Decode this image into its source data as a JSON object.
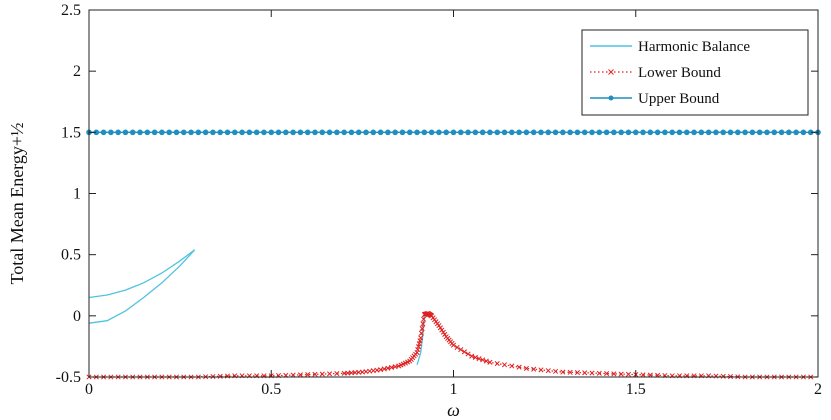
{
  "chart_data": {
    "type": "line",
    "title": "",
    "xlabel": "ω",
    "ylabel": "Total Mean Energy+½",
    "xlim": [
      0,
      2
    ],
    "ylim": [
      -0.5,
      2.5
    ],
    "xticks": [
      0,
      0.5,
      1,
      1.5,
      2
    ],
    "xtick_labels": [
      "0",
      "0.5",
      "1",
      "1.5",
      "2"
    ],
    "yticks": [
      -0.5,
      0,
      0.5,
      1,
      1.5,
      2,
      2.5
    ],
    "ytick_labels": [
      "-0.5",
      "0",
      "0.5",
      "1",
      "1.5",
      "2",
      "2.5"
    ],
    "grid": false,
    "legend_position": "top-right",
    "series": [
      {
        "name": "Harmonic Balance",
        "color": "#4fc3e0",
        "style": "solid",
        "segments": [
          {
            "x": [
              0,
              0.05,
              0.1,
              0.15,
              0.2,
              0.25,
              0.29
            ],
            "y": [
              0.15,
              0.17,
              0.21,
              0.27,
              0.35,
              0.45,
              0.54
            ]
          },
          {
            "x": [
              0,
              0.05,
              0.1,
              0.15,
              0.2,
              0.25,
              0.29
            ],
            "y": [
              -0.06,
              -0.04,
              0.04,
              0.15,
              0.27,
              0.41,
              0.54
            ]
          },
          {
            "x": [
              0.9,
              0.91,
              0.915,
              0.92,
              0.925
            ],
            "y": [
              -0.4,
              -0.3,
              -0.18,
              -0.02,
              0.02
            ]
          }
        ]
      },
      {
        "name": "Lower Bound",
        "color": "#e02020",
        "style": "dotted-x",
        "x": [
          0,
          0.1,
          0.2,
          0.3,
          0.4,
          0.5,
          0.6,
          0.7,
          0.75,
          0.8,
          0.85,
          0.88,
          0.9,
          0.91,
          0.92,
          0.93,
          0.94,
          0.96,
          0.98,
          1.0,
          1.05,
          1.1,
          1.2,
          1.3,
          1.4,
          1.5,
          1.6,
          1.7,
          1.8,
          1.9,
          2.0
        ],
        "y": [
          -0.5,
          -0.5,
          -0.5,
          -0.5,
          -0.49,
          -0.49,
          -0.48,
          -0.47,
          -0.46,
          -0.44,
          -0.41,
          -0.37,
          -0.3,
          -0.18,
          0.01,
          0.02,
          0.0,
          -0.08,
          -0.17,
          -0.24,
          -0.33,
          -0.38,
          -0.43,
          -0.46,
          -0.47,
          -0.48,
          -0.49,
          -0.49,
          -0.5,
          -0.5,
          -0.5
        ]
      },
      {
        "name": "Upper Bound",
        "color": "#1f8fc0",
        "style": "solid-circle",
        "x": [
          0,
          2
        ],
        "y": [
          1.5,
          1.5
        ]
      }
    ]
  }
}
